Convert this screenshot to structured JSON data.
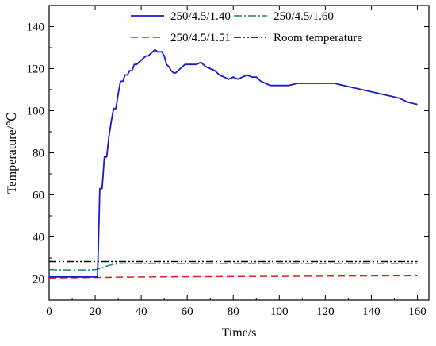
{
  "chart_data": {
    "type": "line",
    "xlabel": "Time/s",
    "ylabel": "Temperature/℃",
    "xlim": [
      0,
      165
    ],
    "ylim": [
      10,
      150
    ],
    "xticks": [
      0,
      20,
      40,
      60,
      80,
      100,
      120,
      140,
      160
    ],
    "yticks": [
      20,
      40,
      60,
      80,
      100,
      120,
      140
    ],
    "legend_position": "top",
    "grid": false,
    "series": [
      {
        "name": "250/4.5/1.40",
        "color": "#1a1acc",
        "dash": "solid",
        "x": [
          0,
          21,
          21.5,
          22,
          23,
          24,
          25,
          26,
          27,
          28,
          29,
          30,
          31,
          32,
          33,
          34,
          35,
          36,
          37,
          38,
          39,
          40,
          41,
          42,
          43,
          44,
          45,
          46,
          47,
          48,
          49,
          50,
          51,
          52,
          53,
          54,
          55,
          56,
          57,
          58,
          59,
          60,
          62,
          64,
          66,
          68,
          70,
          72,
          74,
          76,
          78,
          80,
          82,
          84,
          86,
          88,
          90,
          92,
          94,
          96,
          98,
          100,
          104,
          108,
          112,
          116,
          120,
          124,
          128,
          132,
          136,
          140,
          144,
          148,
          152,
          156,
          160
        ],
        "values": [
          21,
          21,
          40,
          63,
          63,
          78,
          78,
          88,
          95,
          101,
          101,
          108,
          114,
          114,
          117,
          117,
          119,
          119,
          122,
          122,
          123,
          124,
          125,
          126,
          126,
          127,
          128,
          129,
          128,
          128,
          128,
          126,
          122,
          121,
          119,
          118,
          118,
          119,
          120,
          121,
          122,
          122,
          122,
          122,
          123,
          121,
          120,
          119,
          117,
          116,
          115,
          116,
          115,
          116,
          117,
          116,
          116,
          114,
          113,
          112,
          112,
          112,
          112,
          113,
          113,
          113,
          113,
          113,
          112,
          111,
          110,
          109,
          108,
          107,
          106,
          104,
          103
        ]
      },
      {
        "name": "250/4.5/1.60",
        "color": "#1a8080",
        "dash": "dash-dot",
        "x": [
          0,
          5,
          10,
          15,
          20,
          22,
          24,
          26,
          28,
          30,
          32,
          35,
          40,
          50,
          60,
          80,
          100,
          120,
          140,
          160
        ],
        "values": [
          24.5,
          24.3,
          24.3,
          24.3,
          24.4,
          25.0,
          25.8,
          26.5,
          27.0,
          27.3,
          27.5,
          27.5,
          27.4,
          27.4,
          27.4,
          27.4,
          27.4,
          27.4,
          27.4,
          27.4
        ]
      },
      {
        "name": "250/4.5/1.51",
        "color": "#e02020",
        "dash": "dashed",
        "x": [
          0,
          20,
          40,
          60,
          80,
          100,
          120,
          140,
          160
        ],
        "values": [
          20.5,
          20.7,
          21.0,
          21.1,
          21.2,
          21.3,
          21.4,
          21.5,
          21.6
        ]
      },
      {
        "name": "Room temperature",
        "color": "#000000",
        "dash": "dash-dot-dot",
        "x": [
          0,
          160
        ],
        "values": [
          28.3,
          28.3
        ]
      }
    ]
  }
}
